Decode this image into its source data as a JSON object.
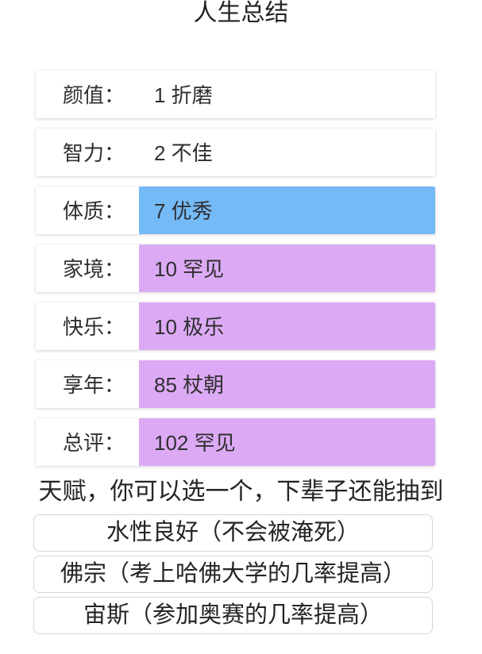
{
  "page": {
    "title": "人生总结",
    "talent_prompt": "天赋，你可以选一个，下辈子还能抽到"
  },
  "colors": {
    "grade_blue": "#74baf6",
    "grade_purple": "#dcaaf5",
    "grade_white": "#ffffff",
    "text": "#2f2f2f"
  },
  "stats": [
    {
      "label": "颜值：",
      "value": "1 折磨",
      "value_bg": "#ffffff"
    },
    {
      "label": "智力：",
      "value": "2 不佳",
      "value_bg": "#ffffff"
    },
    {
      "label": "体质：",
      "value": "7 优秀",
      "value_bg": "#74baf6"
    },
    {
      "label": "家境：",
      "value": "10 罕见",
      "value_bg": "#dcaaf5"
    },
    {
      "label": "快乐：",
      "value": "10 极乐",
      "value_bg": "#dcaaf5"
    },
    {
      "label": "享年：",
      "value": "85 杖朝",
      "value_bg": "#dcaaf5"
    },
    {
      "label": "总评：",
      "value": "102 罕见",
      "value_bg": "#dcaaf5"
    }
  ],
  "talents": [
    {
      "label": "水性良好（不会被淹死）"
    },
    {
      "label": "佛宗（考上哈佛大学的几率提高）"
    },
    {
      "label": "宙斯（参加奥赛的几率提高）"
    }
  ]
}
